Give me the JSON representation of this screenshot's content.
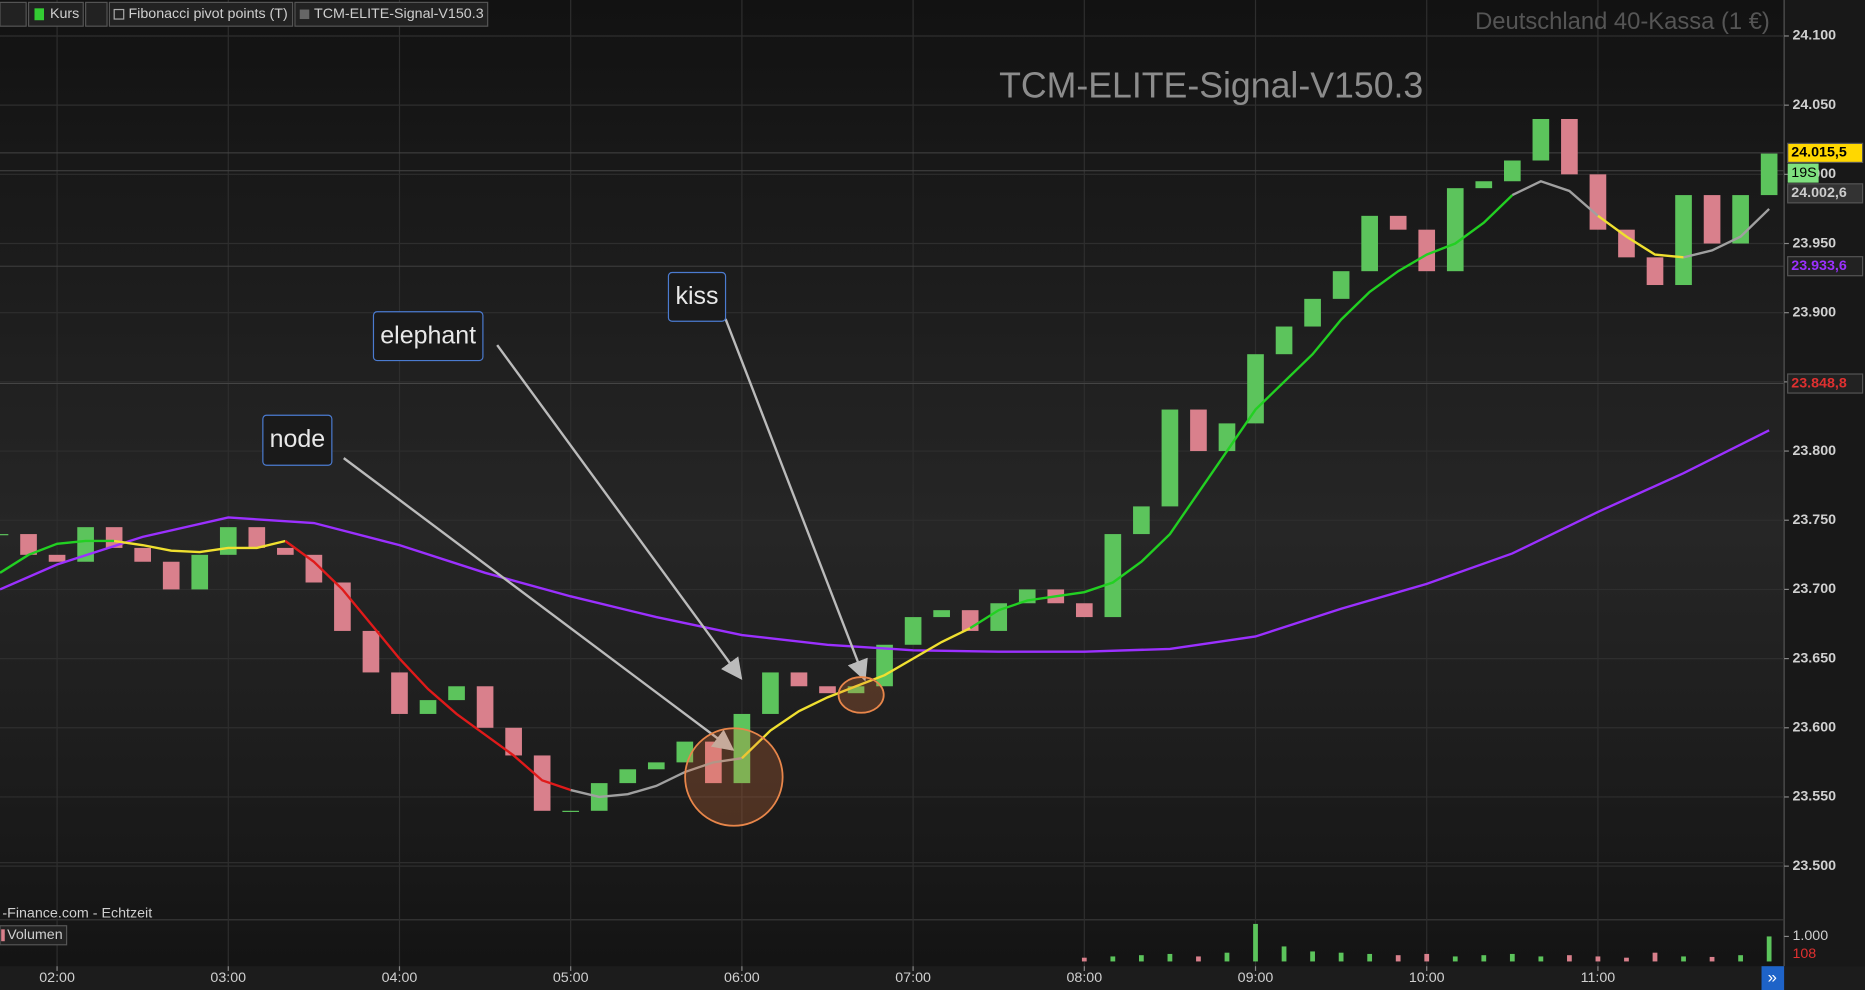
{
  "toolbar": {
    "items": [
      "Kurs",
      "Fibonacci pivot points (T)",
      "TCM-ELITE-Signal-V150.3"
    ]
  },
  "chart_data": {
    "type": "candlestick",
    "title": "Deutschland 40-Kassa (1 €)",
    "watermark": "TCM-ELITE-Signal-V150.3",
    "x": [
      "01:40",
      "01:50",
      "02:00",
      "02:10",
      "02:20",
      "02:30",
      "02:40",
      "02:50",
      "03:00",
      "03:10",
      "03:20",
      "03:30",
      "03:40",
      "03:50",
      "04:00",
      "04:10",
      "04:20",
      "04:30",
      "04:40",
      "04:50",
      "05:00",
      "05:10",
      "05:20",
      "05:30",
      "05:40",
      "05:50",
      "06:00",
      "06:10",
      "06:20",
      "06:30",
      "06:40",
      "06:50",
      "07:00",
      "07:10",
      "07:20",
      "07:30",
      "07:40",
      "07:50",
      "08:00",
      "08:10",
      "08:20",
      "08:30",
      "08:40",
      "08:50",
      "09:00",
      "09:10",
      "09:20",
      "09:30",
      "09:40",
      "09:50",
      "10:00",
      "10:10",
      "10:20",
      "10:30",
      "10:40",
      "10:50",
      "11:00",
      "11:10",
      "11:20",
      "11:30",
      "11:40",
      "11:50",
      "12:00"
    ],
    "values": [
      23.74,
      23.725,
      23.72,
      23.745,
      23.73,
      23.72,
      23.7,
      23.725,
      23.745,
      23.73,
      23.725,
      23.705,
      23.67,
      23.64,
      23.61,
      23.62,
      23.63,
      23.6,
      23.58,
      23.54,
      23.54,
      23.56,
      23.57,
      23.575,
      23.59,
      23.56,
      23.61,
      23.64,
      23.63,
      23.625,
      23.63,
      23.66,
      23.68,
      23.685,
      23.67,
      23.69,
      23.7,
      23.69,
      23.68,
      23.74,
      23.76,
      23.83,
      23.8,
      23.82,
      23.87,
      23.89,
      23.91,
      23.93,
      23.97,
      23.96,
      23.93,
      23.99,
      23.995,
      24.01,
      24.04,
      24.0,
      23.96,
      23.94,
      23.92,
      23.985,
      23.95,
      23.985,
      24.015
    ],
    "up_color": "#5cc45c",
    "down_color": "#d9808c",
    "overlays": [
      {
        "color": "#9b30ff",
        "x": [
          "01:40",
          "02:00",
          "02:30",
          "03:00",
          "03:30",
          "04:00",
          "04:30",
          "05:00",
          "05:30",
          "06:00",
          "06:30",
          "07:00",
          "07:30",
          "08:00",
          "08:30",
          "09:00",
          "09:30",
          "10:00",
          "10:30",
          "11:00",
          "11:30",
          "12:00"
        ],
        "values": [
          23.7,
          23.718,
          23.738,
          23.752,
          23.748,
          23.732,
          23.712,
          23.695,
          23.68,
          23.667,
          23.66,
          23.656,
          23.655,
          23.655,
          23.657,
          23.666,
          23.686,
          23.704,
          23.726,
          23.756,
          23.784,
          23.815
        ]
      },
      {
        "color": "#22d022",
        "x": [
          "01:40",
          "01:50",
          "02:00",
          "02:10",
          "02:20"
        ],
        "values": [
          23.712,
          23.725,
          23.733,
          23.735,
          23.735
        ]
      },
      {
        "color": "#f0e030",
        "x": [
          "02:20",
          "02:30",
          "02:40",
          "02:50",
          "03:00",
          "03:10",
          "03:20"
        ],
        "values": [
          23.735,
          23.732,
          23.728,
          23.727,
          23.73,
          23.73,
          23.735
        ]
      },
      {
        "color": "#e01a1a",
        "x": [
          "03:20",
          "03:30",
          "03:40",
          "03:50",
          "04:00",
          "04:10",
          "04:20",
          "04:30",
          "04:40",
          "04:50",
          "05:00"
        ],
        "values": [
          23.735,
          23.72,
          23.7,
          23.675,
          23.65,
          23.628,
          23.61,
          23.595,
          23.58,
          23.562,
          23.555
        ]
      },
      {
        "color": "#a0a0a0",
        "x": [
          "05:00",
          "05:10",
          "05:20",
          "05:30",
          "05:40",
          "05:50",
          "06:00"
        ],
        "values": [
          23.555,
          23.55,
          23.552,
          23.558,
          23.568,
          23.575,
          23.578
        ]
      },
      {
        "color": "#f0e030",
        "x": [
          "06:00",
          "06:10",
          "06:20",
          "06:30",
          "06:40",
          "06:50",
          "07:00",
          "07:10",
          "07:20"
        ],
        "values": [
          23.578,
          23.598,
          23.612,
          23.622,
          23.63,
          23.638,
          23.65,
          23.662,
          23.672
        ]
      },
      {
        "color": "#22d022",
        "x": [
          "07:20",
          "07:30",
          "07:40",
          "07:50",
          "08:00",
          "08:10",
          "08:20",
          "08:30",
          "08:40",
          "08:50",
          "09:00",
          "09:10",
          "09:20",
          "09:30",
          "09:40",
          "09:50",
          "10:00",
          "10:10",
          "10:20",
          "10:30"
        ],
        "values": [
          23.672,
          23.685,
          23.692,
          23.695,
          23.698,
          23.705,
          23.72,
          23.74,
          23.77,
          23.8,
          23.83,
          23.85,
          23.87,
          23.895,
          23.915,
          23.93,
          23.942,
          23.95,
          23.965,
          23.985
        ]
      },
      {
        "color": "#a0a0a0",
        "x": [
          "10:30",
          "10:40",
          "10:50",
          "11:00"
        ],
        "values": [
          23.985,
          23.995,
          23.988,
          23.97
        ]
      },
      {
        "color": "#f0e030",
        "x": [
          "11:00",
          "11:10",
          "11:20",
          "11:30"
        ],
        "values": [
          23.97,
          23.955,
          23.942,
          23.94
        ]
      },
      {
        "color": "#a0a0a0",
        "x": [
          "11:30",
          "11:40",
          "11:50",
          "12:00"
        ],
        "values": [
          23.94,
          23.945,
          23.955,
          23.975
        ]
      }
    ],
    "xlim": [
      "01:40",
      "12:04"
    ],
    "xticks": [
      "02:00",
      "03:00",
      "04:00",
      "05:00",
      "06:00",
      "07:00",
      "08:00",
      "09:00",
      "10:00",
      "11:00"
    ],
    "ylim": [
      23.481,
      24.126
    ],
    "yticks": [
      {
        "value": 23.5,
        "label": "23.500"
      },
      {
        "value": 23.55,
        "label": "23.550"
      },
      {
        "value": 23.6,
        "label": "23.600"
      },
      {
        "value": 23.65,
        "label": "23.650"
      },
      {
        "value": 23.7,
        "label": "23.700"
      },
      {
        "value": 23.75,
        "label": "23.750"
      },
      {
        "value": 23.8,
        "label": "23.800"
      },
      {
        "value": 23.85,
        "label": "23.850"
      },
      {
        "value": 23.9,
        "label": "23.900"
      },
      {
        "value": 23.95,
        "label": "23.950"
      },
      {
        "value": 24.0,
        "label": "24.000"
      },
      {
        "value": 24.05,
        "label": "24.050"
      },
      {
        "value": 24.1,
        "label": "24.100"
      }
    ],
    "grid": true,
    "price_tags": [
      {
        "value": 24.0155,
        "label": "24.015,5",
        "color": "#ffd700",
        "text_color": "#000000"
      },
      {
        "value": 24.0026,
        "label": "24.002,6",
        "color": "#333333",
        "text_color": "#cccccc"
      },
      {
        "value": 23.9336,
        "label": "23.933,6",
        "color": "#222222",
        "text_color": "#9b30ff"
      },
      {
        "value": 23.8488,
        "label": "23.848,8",
        "color": "#222222",
        "text_color": "#e03030"
      }
    ],
    "timer": "19S",
    "source": "-Finance.com - Echtzeit",
    "volume": {
      "title": "Volumen",
      "x": [
        "08:00",
        "08:10",
        "08:20",
        "08:30",
        "08:40",
        "08:50",
        "09:00",
        "09:10",
        "09:20",
        "09:30",
        "09:40",
        "09:50",
        "10:00",
        "10:10",
        "10:20",
        "10:30",
        "10:40",
        "10:50",
        "11:00",
        "11:10",
        "11:20",
        "11:30",
        "11:40",
        "11:50",
        "12:00"
      ],
      "values": [
        150,
        200,
        250,
        300,
        200,
        350,
        1500,
        600,
        400,
        350,
        300,
        250,
        300,
        200,
        250,
        300,
        200,
        250,
        200,
        150,
        350,
        200,
        180,
        250,
        1000
      ],
      "ylim": [
        0,
        1570
      ],
      "yticks": [
        {
          "value": 1000,
          "label": "1.000"
        }
      ],
      "current": 108
    }
  },
  "annotations": [
    "node",
    "elephant",
    "kiss"
  ]
}
